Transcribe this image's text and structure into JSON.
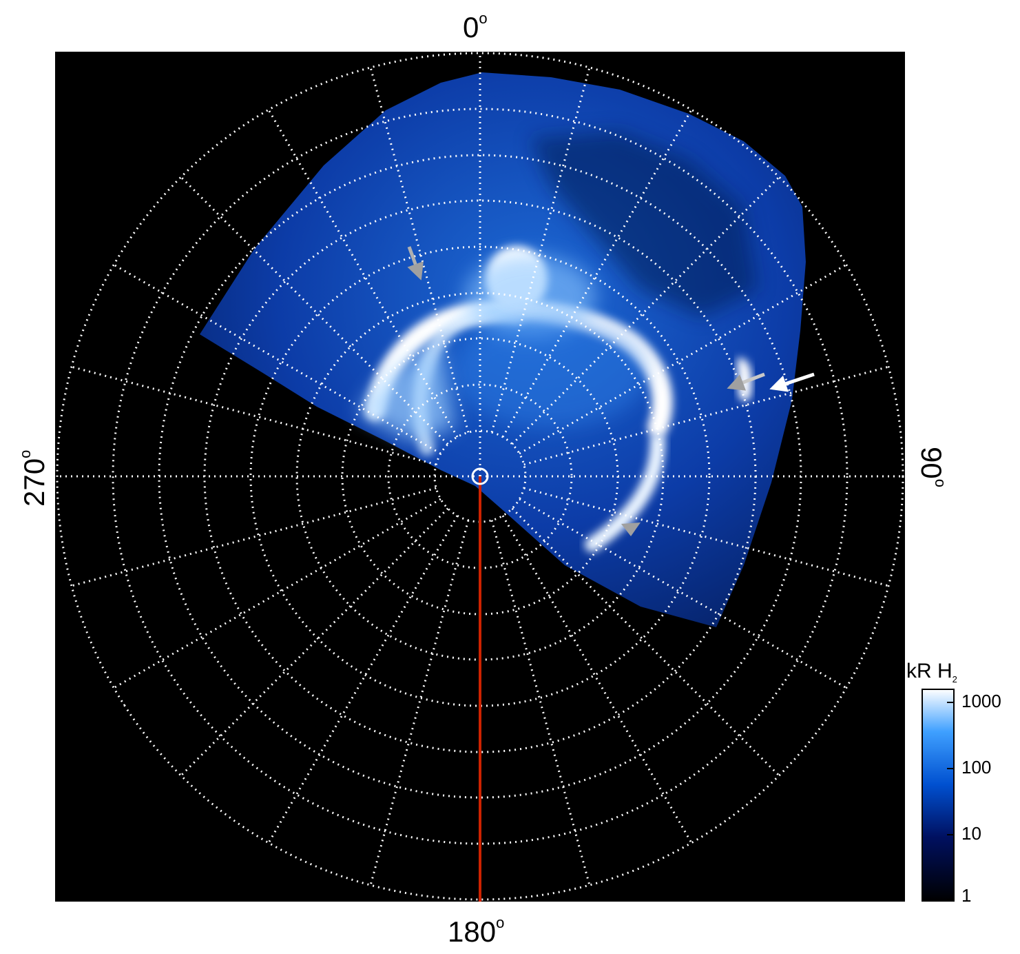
{
  "figure": {
    "axis_labels": {
      "top": "0",
      "right": "90",
      "bottom": "180",
      "left": "270",
      "degree_symbol": "o"
    },
    "colorbar": {
      "title_main": "kR H",
      "title_sub": "2",
      "ticks": [
        "1000",
        "100",
        "10",
        "1"
      ],
      "scale": "log",
      "range": [
        1,
        1000
      ],
      "colors": [
        "#000000",
        "#001060",
        "#0050d0",
        "#3fa0ff",
        "#ffffff"
      ]
    },
    "grid": {
      "style": "dotted",
      "color": "#ffffff",
      "parallels": 9,
      "meridian_step_deg": 15
    },
    "colors": {
      "background": "#000000",
      "emission_dim": "#0a3aa8",
      "emission_mid": "#2f8bf0",
      "emission_bright": "#ffffff",
      "meridian_line": "#cc2200",
      "arrow_white": "#ffffff",
      "arrow_grey": "#9a9a9a"
    }
  }
}
